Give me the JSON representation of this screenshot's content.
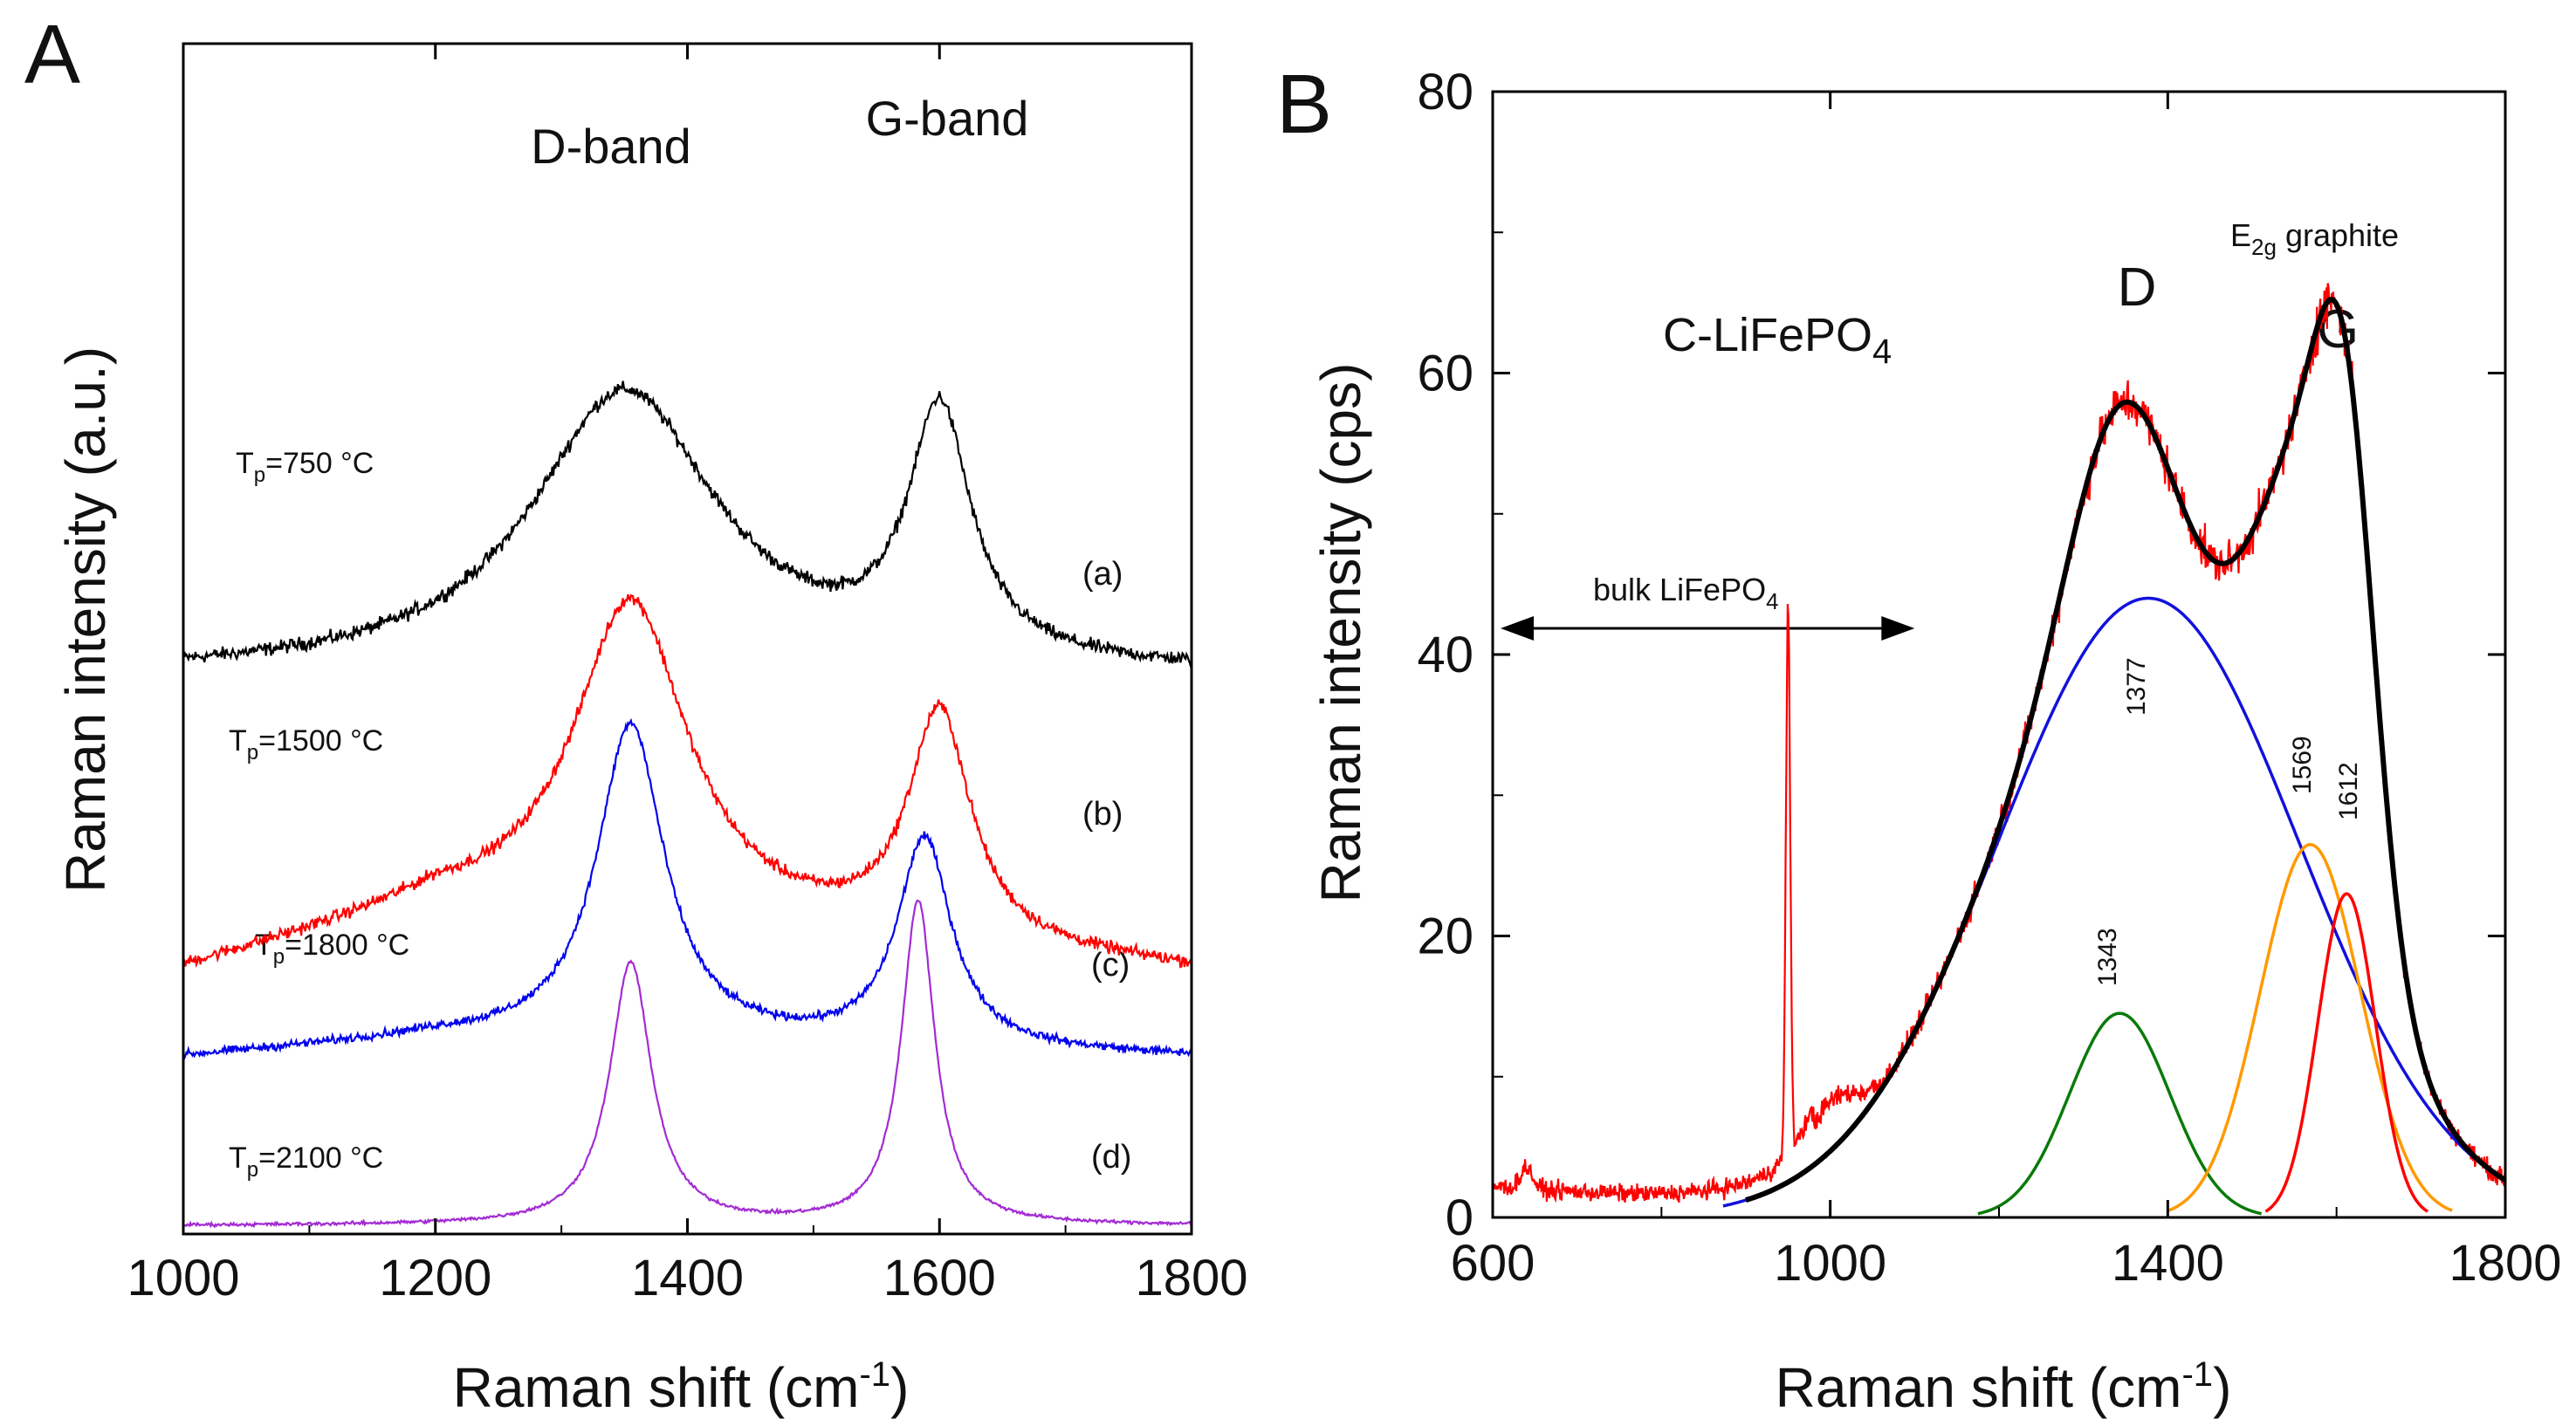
{
  "figure": {
    "panel_a_letter": "A",
    "panel_b_letter": "B"
  },
  "chart_data": [
    {
      "id": "A",
      "type": "line",
      "xlabel": "Raman shift (cm-1)",
      "xlabel_main": "Raman shift (cm",
      "xlabel_sup": "-1",
      "xlabel_close": ")",
      "ylabel": "Raman intensity (a.u.)",
      "xlim": [
        1000,
        1800
      ],
      "ylim": [
        0,
        5.8
      ],
      "grid": false,
      "xticks": [
        1000,
        1200,
        1400,
        1600,
        1800
      ],
      "tick_labels": [
        "1000",
        "1200",
        "1400",
        "1600",
        "1800"
      ],
      "band_labels": {
        "d": "D-band",
        "g": "G-band"
      },
      "series": [
        {
          "name": "(a)",
          "temp_prefix": "T",
          "temp_sub": "p",
          "temp_value": "=750 °C",
          "color": "#000000",
          "baseline": [
            [
              1000,
              2.72
            ],
            [
              1800,
              2.72
            ]
          ],
          "peaks": [
            {
              "center": 1350,
              "height": 1.38,
              "width": 180
            },
            {
              "center": 1600,
              "height": 1.2,
              "width": 60
            }
          ],
          "noise": 0.05
        },
        {
          "name": "(b)",
          "temp_prefix": "T",
          "temp_sub": "p",
          "temp_value": "=1500 °C",
          "color": "#ff0000",
          "baseline": [
            [
              1000,
              1.28
            ],
            [
              1200,
              1.58
            ],
            [
              1800,
              1.28
            ]
          ],
          "peaks": [
            {
              "center": 1355,
              "height": 1.58,
              "width": 110
            },
            {
              "center": 1600,
              "height": 1.12,
              "width": 60
            }
          ],
          "noise": 0.045
        },
        {
          "name": "(c)",
          "temp_prefix": "T",
          "temp_sub": "p",
          "temp_value": "=1800 °C",
          "color": "#0000ee",
          "baseline": [
            [
              1000,
              0.86
            ],
            [
              1200,
              0.95
            ],
            [
              1800,
              0.86
            ]
          ],
          "peaks": [
            {
              "center": 1355,
              "height": 1.55,
              "width": 65
            },
            {
              "center": 1588,
              "height": 1.02,
              "width": 52
            }
          ],
          "noise": 0.03
        },
        {
          "name": "(d)",
          "temp_prefix": "T",
          "temp_sub": "p",
          "temp_value": "=2100 °C",
          "color": "#a32bd4",
          "baseline": [
            [
              1000,
              0.04
            ],
            [
              1800,
              0.04
            ]
          ],
          "peaks": [
            {
              "center": 1355,
              "height": 1.28,
              "width": 40
            },
            {
              "center": 1583,
              "height": 1.58,
              "width": 32
            }
          ],
          "noise": 0.012
        }
      ]
    },
    {
      "id": "B",
      "type": "line",
      "xlabel": "Raman shift (cm-1)",
      "xlabel_main": "Raman shift (cm",
      "xlabel_sup": "-1",
      "xlabel_close": ")",
      "ylabel": "Raman intensity (cps)",
      "xlim": [
        600,
        1800
      ],
      "ylim": [
        0,
        80
      ],
      "grid": false,
      "xticks": [
        600,
        1000,
        1400,
        1800
      ],
      "xtick_labels": [
        "600",
        "1000",
        "1400",
        "1800"
      ],
      "yticks": [
        0,
        20,
        40,
        60,
        80
      ],
      "ytick_labels": [
        "0",
        "20",
        "40",
        "60",
        "80"
      ],
      "compound_main": "C-LiFePO",
      "compound_sub": "4",
      "bulk_main": "bulk LiFePO",
      "bulk_sub": "4",
      "bulk_range": [
        630,
        1100
      ],
      "e2g_main": "E",
      "e2g_sub": "2g",
      "e2g_rest": " graphite",
      "d_label": "D",
      "g_label": "G",
      "components": [
        {
          "name": "1377",
          "center": 1377,
          "height": 44,
          "fwhm": 420,
          "color": "#1111dd"
        },
        {
          "name": "1343",
          "center": 1343,
          "height": 14.5,
          "fwhm": 140,
          "color": "#0a7a0a"
        },
        {
          "name": "1569",
          "center": 1569,
          "height": 26.5,
          "fwhm": 140,
          "color": "#ff9900"
        },
        {
          "name": "1612",
          "center": 1612,
          "height": 23,
          "fwhm": 80,
          "color": "#ff0000"
        }
      ],
      "fit_color": "#000000",
      "measured_color": "#ff0000",
      "bulk_peak": {
        "center": 950,
        "height": 39,
        "fwhm": 6
      }
    }
  ]
}
